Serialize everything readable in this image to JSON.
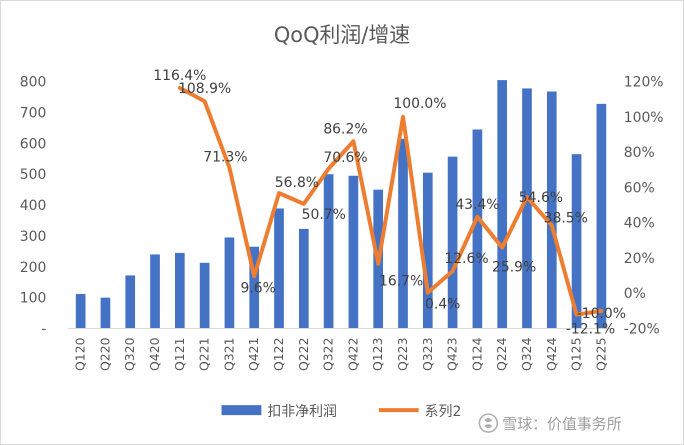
{
  "chart_data": {
    "type": "bar+line",
    "title": "QoQ利润/增速",
    "categories": [
      "Q120",
      "Q220",
      "Q320",
      "Q420",
      "Q121",
      "Q221",
      "Q321",
      "Q421",
      "Q122",
      "Q222",
      "Q322",
      "Q422",
      "Q123",
      "Q223",
      "Q323",
      "Q423",
      "Q124",
      "Q224",
      "Q324",
      "Q424",
      "Q125",
      "Q225"
    ],
    "series": [
      {
        "name": "扣非净利润",
        "type": "bar",
        "axis": "left",
        "color": "#4472C4",
        "values": [
          112,
          100,
          172,
          240,
          245,
          213,
          295,
          265,
          389,
          323,
          500,
          495,
          450,
          615,
          505,
          557,
          645,
          805,
          778,
          768,
          565,
          728
        ]
      },
      {
        "name": "系列2",
        "type": "line",
        "axis": "right",
        "color": "#ED7D31",
        "values": [
          null,
          null,
          null,
          null,
          116.4,
          108.9,
          71.3,
          9.6,
          56.8,
          50.7,
          70.6,
          86.2,
          16.7,
          100.0,
          0.4,
          12.6,
          43.4,
          25.9,
          54.6,
          38.5,
          -12.1,
          -10.0
        ]
      }
    ],
    "data_labels": [
      {
        "series": 1,
        "index": 4,
        "text": "116.4%"
      },
      {
        "series": 1,
        "index": 5,
        "text": "108.9%"
      },
      {
        "series": 1,
        "index": 6,
        "text": "71.3%"
      },
      {
        "series": 1,
        "index": 7,
        "text": "9.6%"
      },
      {
        "series": 1,
        "index": 8,
        "text": "56.8%"
      },
      {
        "series": 1,
        "index": 9,
        "text": "50.7%"
      },
      {
        "series": 1,
        "index": 10,
        "text": "70.6%"
      },
      {
        "series": 1,
        "index": 11,
        "text": "86.2%"
      },
      {
        "series": 1,
        "index": 12,
        "text": "16.7%"
      },
      {
        "series": 1,
        "index": 13,
        "text": "100.0%"
      },
      {
        "series": 1,
        "index": 14,
        "text": "0.4%"
      },
      {
        "series": 1,
        "index": 15,
        "text": "12.6%"
      },
      {
        "series": 1,
        "index": 16,
        "text": "43.4%"
      },
      {
        "series": 1,
        "index": 17,
        "text": "25.9%"
      },
      {
        "series": 1,
        "index": 18,
        "text": "54.6%"
      },
      {
        "series": 1,
        "index": 19,
        "text": "38.5%"
      },
      {
        "series": 1,
        "index": 20,
        "text": "-12.1%"
      },
      {
        "series": 1,
        "index": 21,
        "text": "-10.0%"
      }
    ],
    "left_axis": {
      "min": 0,
      "max": 800,
      "step": 100,
      "tick_labels": [
        "-",
        "100",
        "200",
        "300",
        "400",
        "500",
        "600",
        "700",
        "800"
      ]
    },
    "right_axis": {
      "min": -20,
      "max": 120,
      "step": 20,
      "tick_labels": [
        "-20%",
        "0%",
        "20%",
        "40%",
        "60%",
        "80%",
        "100%",
        "120%"
      ]
    },
    "legend": {
      "position": "bottom",
      "entries": [
        "扣非净利润",
        "系列2"
      ]
    },
    "grid": false
  },
  "watermark": "雪球：价值事务所"
}
